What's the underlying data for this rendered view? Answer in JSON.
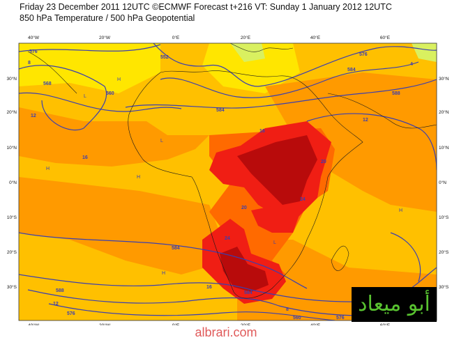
{
  "header": {
    "line1": "Friday 23 December 2011 12UTC ©ECMWF Forecast t+216 VT: Sunday 1 January 2012 12UTC",
    "line2": "850 hPa Temperature / 500 hPa Geopotential"
  },
  "map": {
    "lon_labels": [
      "40°W",
      "20°W",
      "0°E",
      "20°E",
      "40°E",
      "60°E"
    ],
    "lat_labels": [
      "30°N",
      "20°N",
      "10°N",
      "0°N",
      "10°S",
      "20°S",
      "30°S"
    ],
    "geopotential_labels": [
      "576",
      "568",
      "560",
      "552",
      "584",
      "576",
      "584",
      "588",
      "584",
      "588",
      "576",
      "584",
      "560",
      "576"
    ],
    "temperature_labels": [
      "8",
      "12",
      "16",
      "16",
      "20",
      "24",
      "24",
      "20",
      "12",
      "12",
      "16",
      "8",
      "4"
    ],
    "pressure_centers": [
      "H",
      "L",
      "H",
      "L",
      "H",
      "L",
      "H",
      "H"
    ],
    "colors": {
      "cold": "#ffe600",
      "mild": "#ffc000",
      "warm": "#ff9a00",
      "hot": "#ff6a00",
      "very_hot": "#f01e14",
      "extreme": "#b80b0b",
      "contour": "#3a3fb0"
    }
  },
  "watermark": {
    "logo_text": "أبو ميعاد",
    "site": "albrari.com"
  }
}
